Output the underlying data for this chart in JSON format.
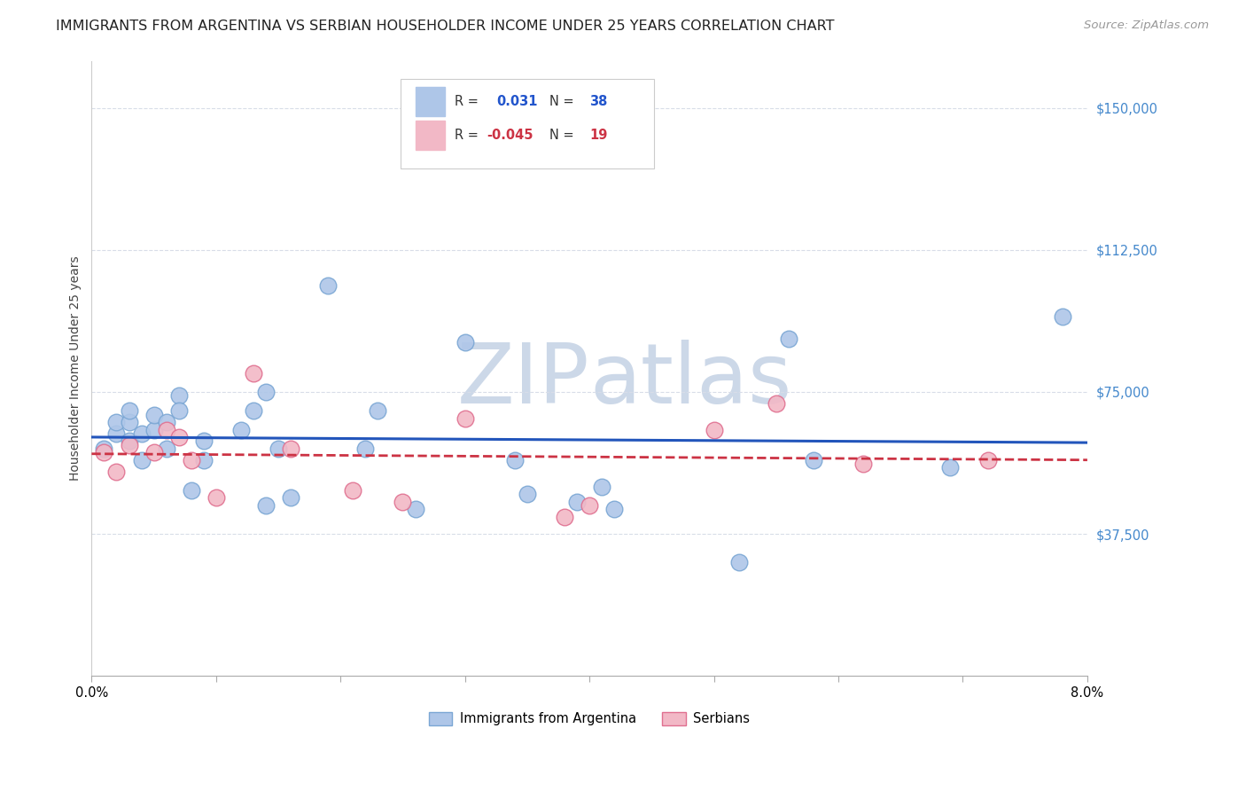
{
  "title": "IMMIGRANTS FROM ARGENTINA VS SERBIAN HOUSEHOLDER INCOME UNDER 25 YEARS CORRELATION CHART",
  "source": "Source: ZipAtlas.com",
  "ylabel": "Householder Income Under 25 years",
  "ytick_labels": [
    "$37,500",
    "$75,000",
    "$112,500",
    "$150,000"
  ],
  "ytick_values": [
    37500,
    75000,
    112500,
    150000
  ],
  "ymin": 0,
  "ymax": 162500,
  "xmin": 0.0,
  "xmax": 0.08,
  "legend_R1": "0.031",
  "legend_N1": "38",
  "legend_R2": "-0.045",
  "legend_N2": "19",
  "argentina_color": "#aec6e8",
  "argentina_edge": "#7ba7d4",
  "serbian_color": "#f2b8c6",
  "serbian_edge": "#e07090",
  "trendline_argentina_color": "#2255bb",
  "trendline_serbian_color": "#cc3344",
  "watermark_color": "#ccd8e8",
  "argentina_x": [
    0.001,
    0.002,
    0.002,
    0.003,
    0.003,
    0.003,
    0.004,
    0.004,
    0.005,
    0.005,
    0.006,
    0.006,
    0.007,
    0.007,
    0.008,
    0.009,
    0.009,
    0.012,
    0.013,
    0.014,
    0.014,
    0.015,
    0.016,
    0.019,
    0.022,
    0.023,
    0.026,
    0.03,
    0.034,
    0.035,
    0.039,
    0.041,
    0.042,
    0.052,
    0.056,
    0.058,
    0.069,
    0.078
  ],
  "argentina_y": [
    60000,
    64000,
    67000,
    62000,
    67000,
    70000,
    64000,
    57000,
    65000,
    69000,
    60000,
    67000,
    74000,
    70000,
    49000,
    57000,
    62000,
    65000,
    70000,
    45000,
    75000,
    60000,
    47000,
    103000,
    60000,
    70000,
    44000,
    88000,
    57000,
    48000,
    46000,
    50000,
    44000,
    30000,
    89000,
    57000,
    55000,
    95000
  ],
  "serbian_x": [
    0.001,
    0.002,
    0.003,
    0.005,
    0.006,
    0.007,
    0.008,
    0.01,
    0.013,
    0.016,
    0.021,
    0.025,
    0.03,
    0.038,
    0.04,
    0.05,
    0.055,
    0.062,
    0.072
  ],
  "serbian_y": [
    59000,
    54000,
    61000,
    59000,
    65000,
    63000,
    57000,
    47000,
    80000,
    60000,
    49000,
    46000,
    68000,
    42000,
    45000,
    65000,
    72000,
    56000,
    57000
  ],
  "background_color": "#ffffff",
  "grid_color": "#d8dde8",
  "title_fontsize": 11.5,
  "axis_label_fontsize": 10,
  "tick_fontsize": 10.5,
  "source_fontsize": 9.5
}
